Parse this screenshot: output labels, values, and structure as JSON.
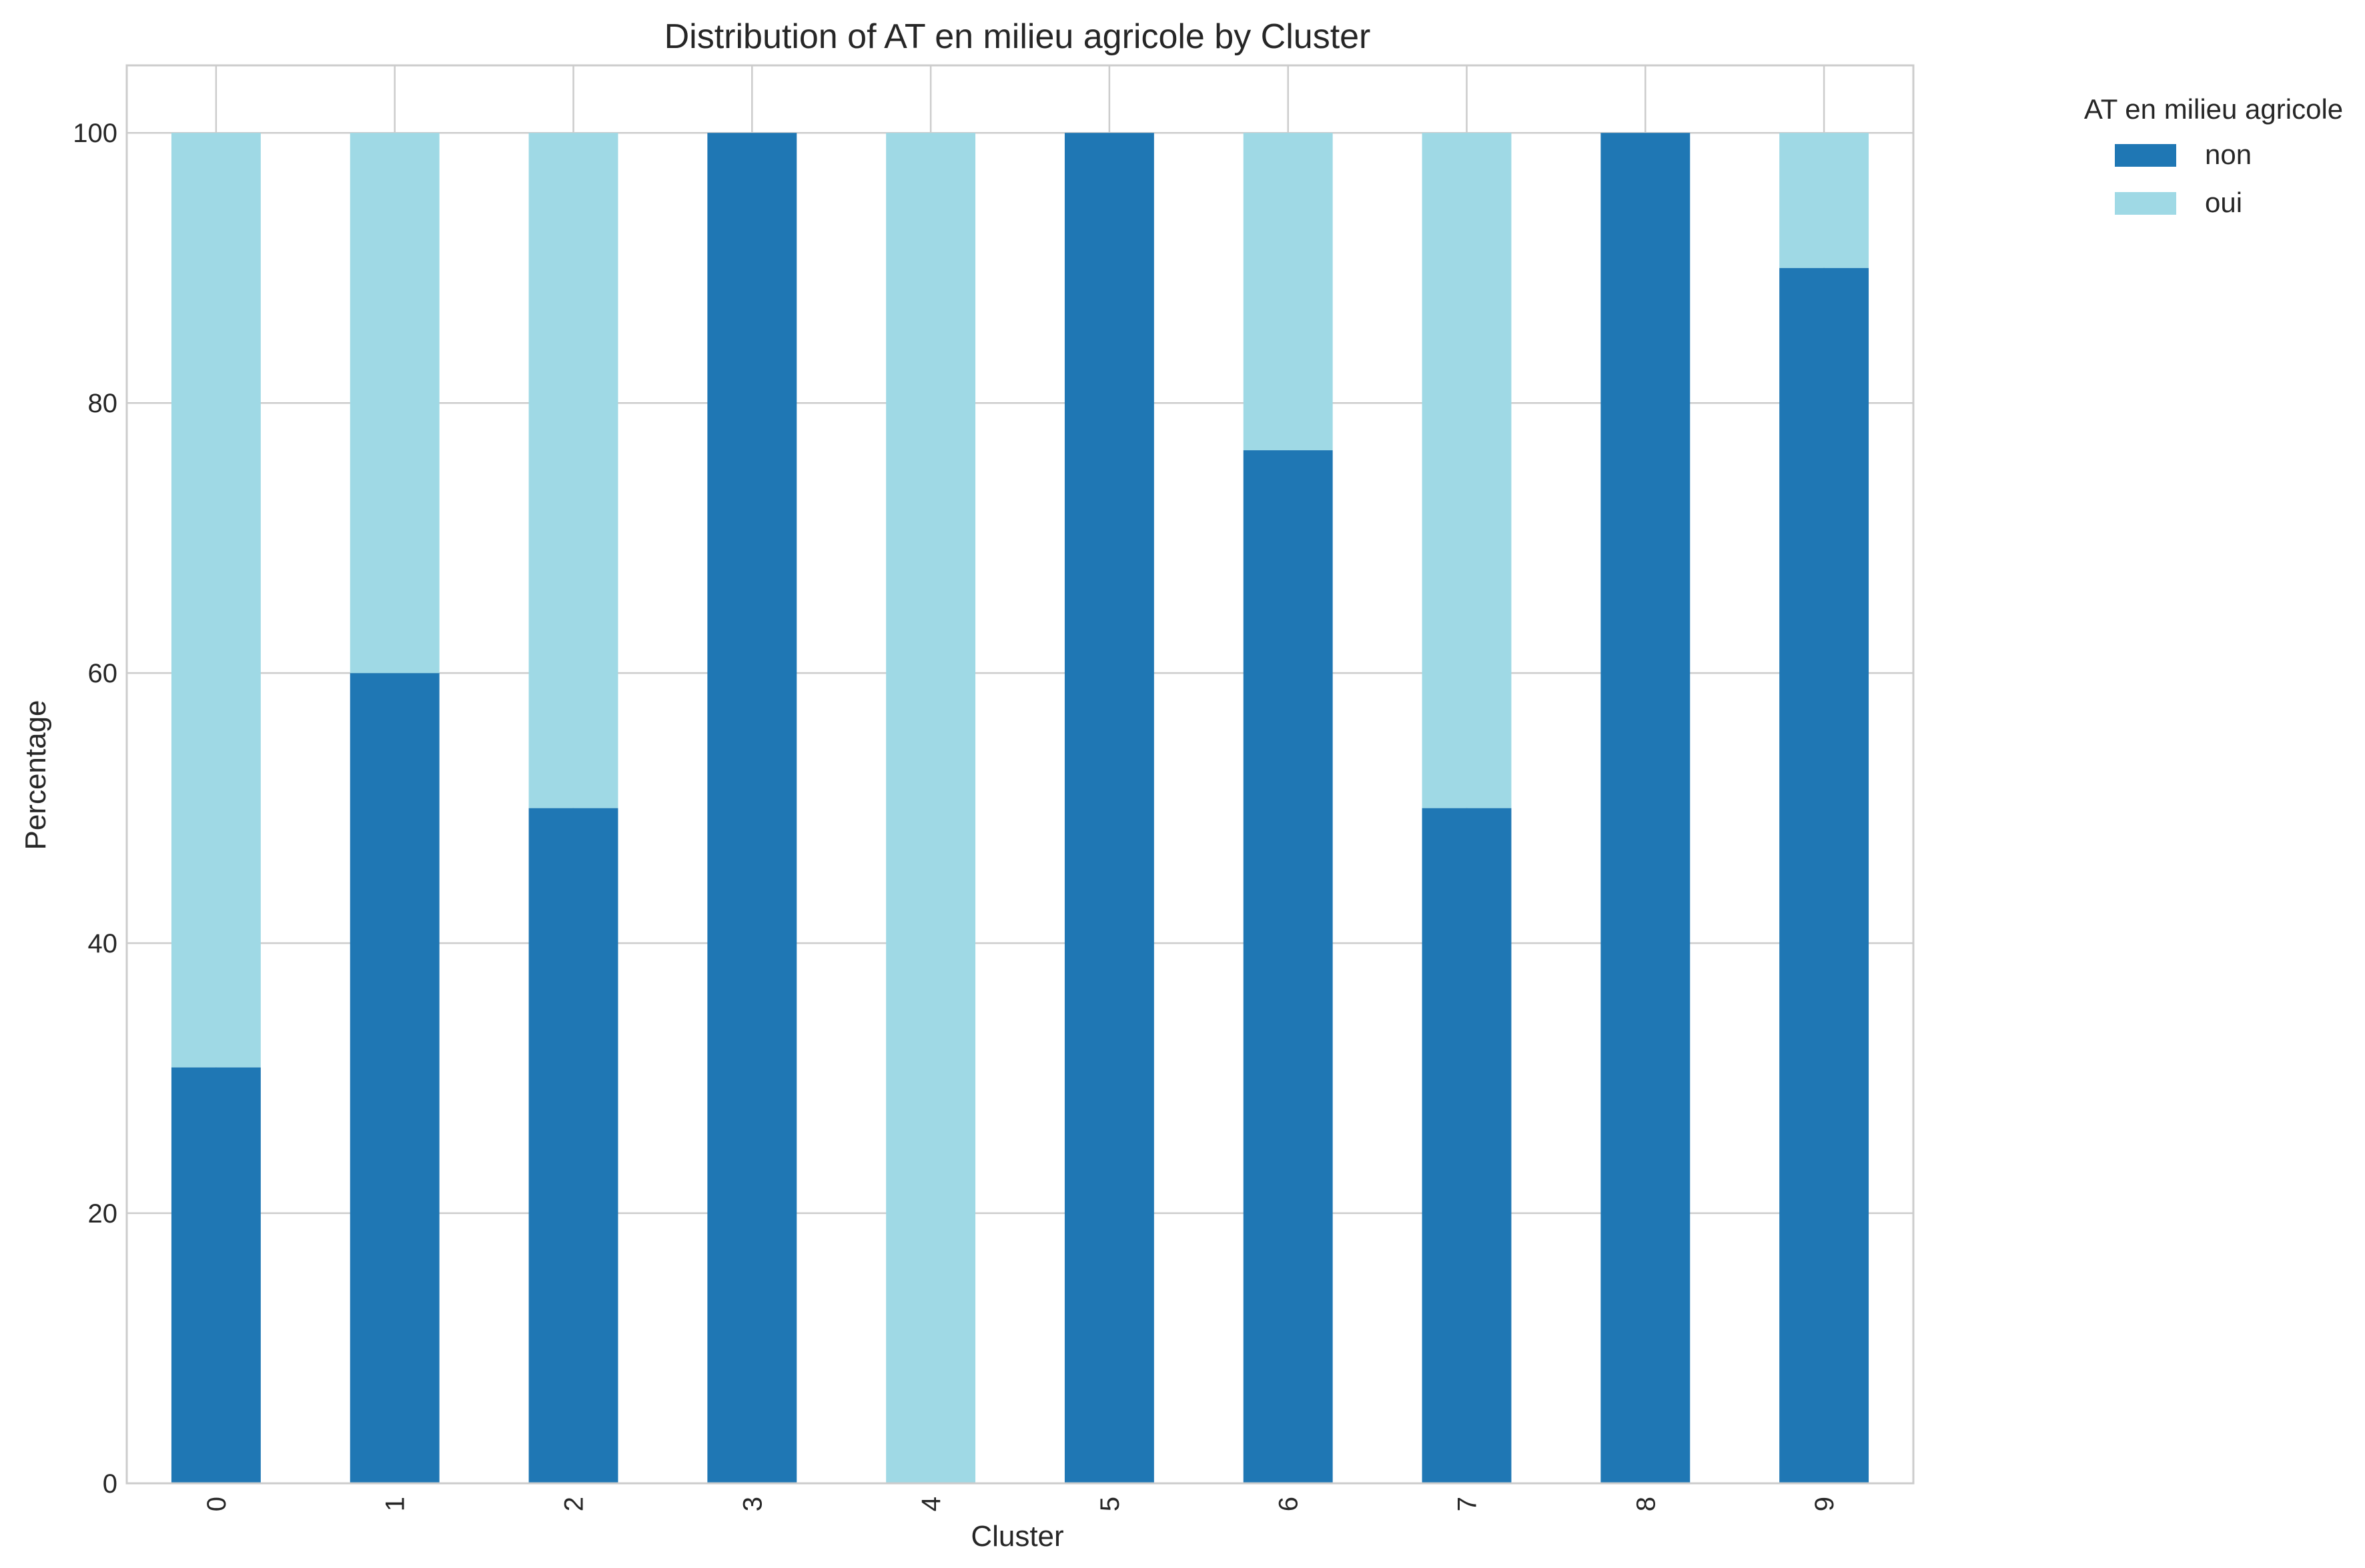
{
  "chart_data": {
    "type": "bar",
    "stacked": true,
    "title": "Distribution of AT en milieu agricole by Cluster",
    "xlabel": "Cluster",
    "ylabel": "Percentage",
    "categories": [
      "0",
      "1",
      "2",
      "3",
      "4",
      "5",
      "6",
      "7",
      "8",
      "9"
    ],
    "series": [
      {
        "name": "non",
        "color": "#1f77b4",
        "values": [
          30.8,
          60,
          50,
          100,
          0,
          100,
          76.5,
          50,
          100,
          90
        ]
      },
      {
        "name": "oui",
        "color": "#9fd9e5",
        "values": [
          69.2,
          40,
          50,
          0,
          100,
          0,
          23.5,
          50,
          0,
          10
        ]
      }
    ],
    "ylim": [
      0,
      105
    ],
    "yticks": [
      0,
      20,
      40,
      60,
      80,
      100
    ],
    "grid": true,
    "legend": {
      "title": "AT en milieu agricole",
      "placement": "outside-top-right"
    }
  }
}
